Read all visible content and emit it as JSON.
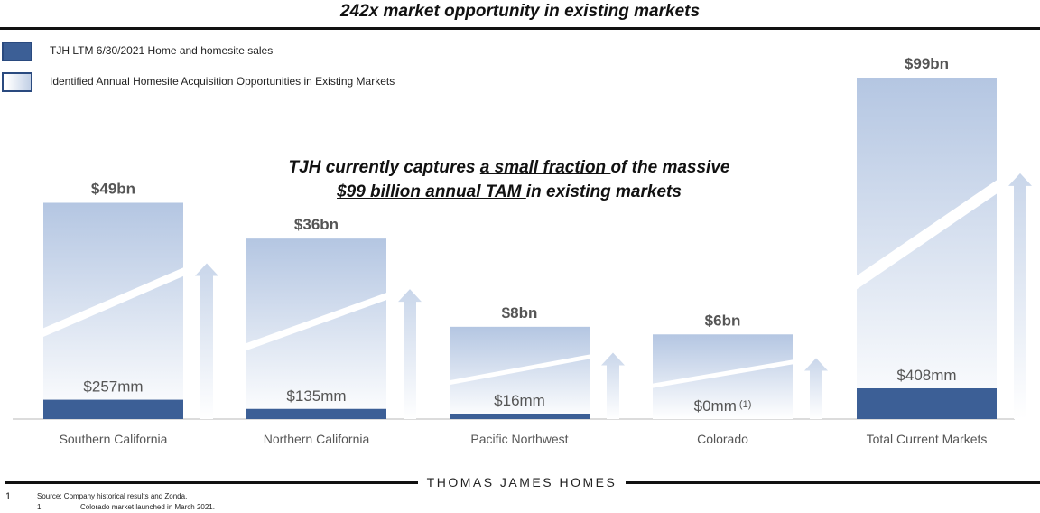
{
  "title": "242x market opportunity in existing markets",
  "legend": [
    {
      "label": "TJH LTM 6/30/2021 Home and homesite sales",
      "style": "solid"
    },
    {
      "label": "Identified Annual Homesite Acquisition Opportunities in Existing Markets",
      "style": "gradient"
    }
  ],
  "callout": {
    "line1_pre": "TJH currently captures ",
    "line1_underline": "a small fraction ",
    "line1_post": "of the massive",
    "line2_underline": "$99 billion annual TAM ",
    "line2_post": "in existing markets"
  },
  "colors": {
    "solid": "#3c5f96",
    "gradient_dark": "#b4c6e2",
    "gradient_light": "#ffffff",
    "arrow": "#c9d6ea"
  },
  "chart_data": {
    "type": "bar",
    "categories": [
      "Southern California",
      "Northern California",
      "Pacific Northwest",
      "Colorado",
      "Total Current Markets"
    ],
    "series": [
      {
        "name": "TJH LTM 6/30/2021 Home and homesite sales",
        "values_mm": [
          257,
          135,
          16,
          0,
          408
        ],
        "labels": [
          "$257mm",
          "$135mm",
          "$16mm",
          "$0mm",
          "$408mm"
        ]
      },
      {
        "name": "Identified Annual Homesite Acquisition Opportunities in Existing Markets",
        "values_bn": [
          49,
          36,
          8,
          6,
          99
        ],
        "labels": [
          "$49bn",
          "$36bn",
          "$8bn",
          "$6bn",
          "$99bn"
        ]
      }
    ],
    "footnote_markers": [
      "",
      "",
      "",
      "(1)",
      ""
    ],
    "scale_break": true,
    "grid": false,
    "legend_position": "top-left"
  },
  "footer": {
    "brand": "THOMAS JAMES HOMES",
    "page_number": "1",
    "source": "Source: Company historical results and Zonda.",
    "note1_marker": "1",
    "note1_text": "Colorado market launched in March 2021."
  }
}
